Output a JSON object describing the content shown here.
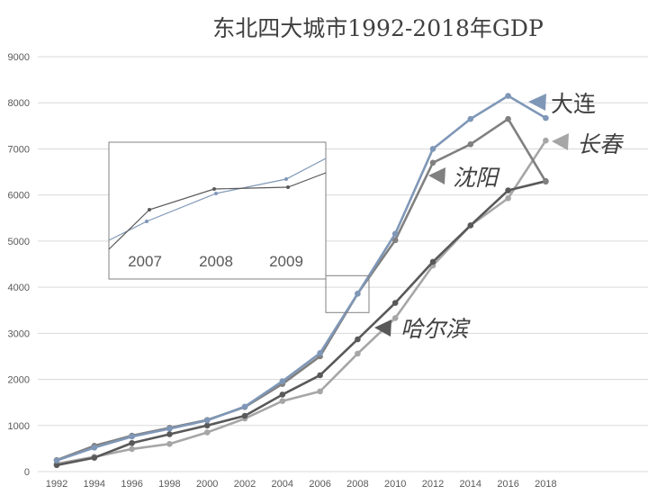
{
  "chart_data": {
    "type": "line",
    "title": "东北四大城市1992-2018年GDP",
    "xlabel": "",
    "ylabel": "",
    "ylim": [
      0,
      9000
    ],
    "yticks": [
      0,
      1000,
      2000,
      3000,
      4000,
      5000,
      6000,
      7000,
      8000,
      9000
    ],
    "x": [
      1992,
      1994,
      1996,
      1998,
      2000,
      2002,
      2004,
      2006,
      2008,
      2010,
      2012,
      2014,
      2016,
      2018
    ],
    "grid": true,
    "legend": "inline labels at line ends",
    "series": [
      {
        "name": "大连",
        "color": "#7f97b7",
        "values": [
          240,
          520,
          760,
          930,
          1110,
          1410,
          1960,
          2570,
          3860,
          5160,
          7000,
          7650,
          8150,
          7670
        ]
      },
      {
        "name": "沈阳",
        "color": "#808080",
        "values": [
          250,
          560,
          780,
          950,
          1120,
          1400,
          1900,
          2500,
          3860,
          5020,
          6700,
          7100,
          7650,
          6290
        ]
      },
      {
        "name": "长春",
        "color": "#a6a6a6",
        "values": [
          170,
          320,
          490,
          600,
          850,
          1150,
          1530,
          1740,
          2560,
          3330,
          4470,
          5340,
          5930,
          7180
        ]
      },
      {
        "name": "哈尔滨",
        "color": "#595959",
        "values": [
          140,
          300,
          620,
          810,
          1000,
          1210,
          1670,
          2090,
          2870,
          3660,
          4550,
          5340,
          6100,
          6300
        ]
      }
    ],
    "inset": {
      "x_labels": [
        "2007",
        "2008",
        "2009"
      ]
    }
  }
}
